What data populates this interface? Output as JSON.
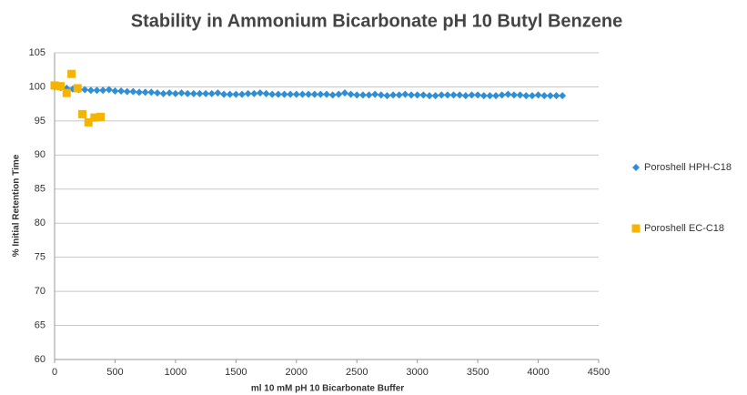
{
  "chart_data": {
    "type": "scatter",
    "title": "Stability in Ammonium Bicarbonate pH 10 Butyl Benzene",
    "x_label": "ml 10 mM pH 10 Bicarbonate Buffer",
    "y_label": "% Initial Retention Time",
    "xlim": [
      0,
      4500
    ],
    "xticks": [
      0,
      500,
      1000,
      1500,
      2000,
      2500,
      3000,
      3500,
      4000,
      4500
    ],
    "ylim": [
      60,
      105
    ],
    "yticks": [
      60,
      65,
      70,
      75,
      80,
      85,
      90,
      95,
      100,
      105
    ],
    "grid": true,
    "legend": "right",
    "series": [
      {
        "name": "Poroshell HPH-C18",
        "color": "#2e8fd6",
        "marker": "diamond",
        "x": [
          0,
          50,
          100,
          150,
          200,
          250,
          300,
          350,
          400,
          450,
          500,
          550,
          600,
          650,
          700,
          750,
          800,
          850,
          900,
          950,
          1000,
          1050,
          1100,
          1150,
          1200,
          1250,
          1300,
          1350,
          1400,
          1450,
          1500,
          1550,
          1600,
          1650,
          1700,
          1750,
          1800,
          1850,
          1900,
          1950,
          2000,
          2050,
          2100,
          2150,
          2200,
          2250,
          2300,
          2350,
          2400,
          2450,
          2500,
          2550,
          2600,
          2650,
          2700,
          2750,
          2800,
          2850,
          2900,
          2950,
          3000,
          3050,
          3100,
          3150,
          3200,
          3250,
          3300,
          3350,
          3400,
          3450,
          3500,
          3550,
          3600,
          3650,
          3700,
          3750,
          3800,
          3850,
          3900,
          3950,
          4000,
          4050,
          4100,
          4150,
          4200
        ],
        "values": [
          100.0,
          99.9,
          99.8,
          99.7,
          99.6,
          99.6,
          99.5,
          99.5,
          99.5,
          99.6,
          99.4,
          99.4,
          99.3,
          99.3,
          99.2,
          99.2,
          99.2,
          99.1,
          99.0,
          99.1,
          99.0,
          99.1,
          99.0,
          99.0,
          99.0,
          99.0,
          99.0,
          99.1,
          98.9,
          98.9,
          98.9,
          98.9,
          99.0,
          99.0,
          99.1,
          99.0,
          98.9,
          98.9,
          98.9,
          98.9,
          98.9,
          98.9,
          98.9,
          98.9,
          98.9,
          98.9,
          98.8,
          98.9,
          99.1,
          98.9,
          98.8,
          98.8,
          98.8,
          98.9,
          98.8,
          98.7,
          98.8,
          98.8,
          98.9,
          98.8,
          98.8,
          98.8,
          98.7,
          98.7,
          98.8,
          98.8,
          98.8,
          98.8,
          98.7,
          98.8,
          98.8,
          98.7,
          98.7,
          98.7,
          98.8,
          98.9,
          98.8,
          98.8,
          98.7,
          98.7,
          98.8,
          98.7,
          98.7,
          98.7,
          98.7
        ]
      },
      {
        "name": "Poroshell EC-C18",
        "color": "#f5b400",
        "marker": "square",
        "x": [
          0,
          50,
          100,
          140,
          190,
          230,
          280,
          330,
          380
        ],
        "values": [
          100.2,
          100.1,
          99.1,
          101.9,
          99.8,
          96.0,
          94.8,
          95.5,
          95.6
        ]
      }
    ]
  }
}
